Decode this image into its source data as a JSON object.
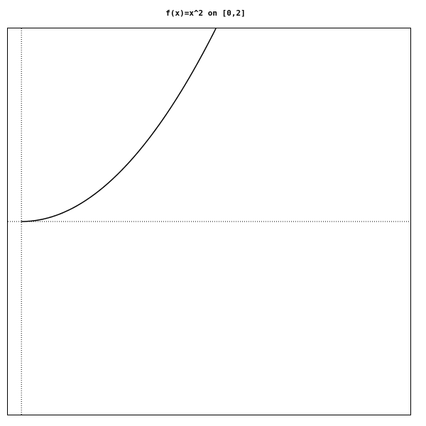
{
  "chart_data": {
    "type": "line",
    "title": "f(x)=x^2 on [0,2]",
    "xlabel": "",
    "ylabel": "",
    "xlim": [
      -0.07,
      2.0
    ],
    "ylim": [
      -1.0,
      1.0
    ],
    "x_axis_at": 0,
    "y_axis_at": 0,
    "grid": false,
    "axis_style": "dotted",
    "series": [
      {
        "function": "x^2",
        "x": [
          0,
          0.1,
          0.2,
          0.3,
          0.4,
          0.5,
          0.6,
          0.7,
          0.8,
          0.9,
          1.0
        ],
        "y": [
          0,
          0.01,
          0.04,
          0.09,
          0.16,
          0.25,
          0.36,
          0.49,
          0.64,
          0.81,
          1.0
        ],
        "color": "#000000"
      }
    ]
  }
}
